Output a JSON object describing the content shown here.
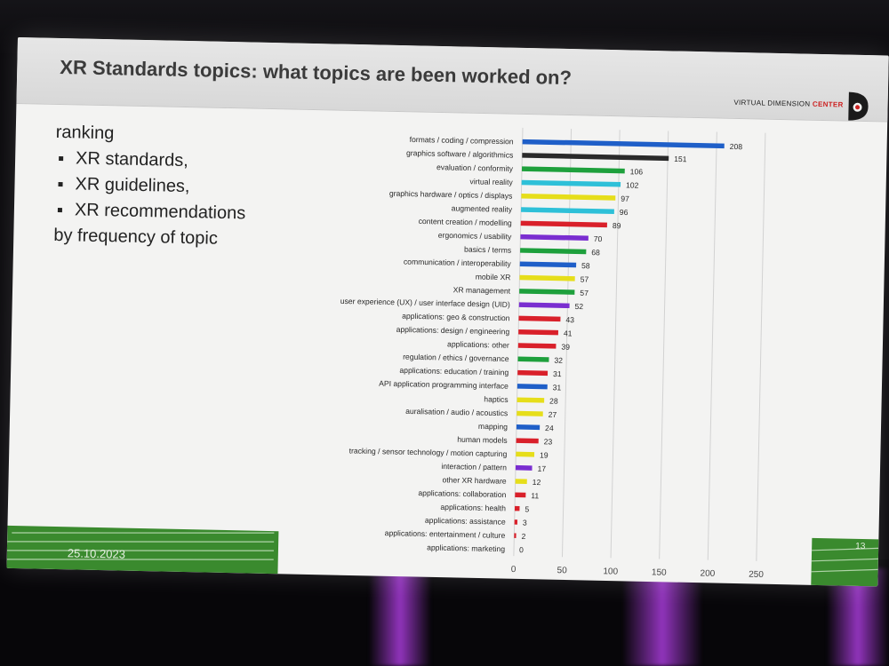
{
  "slide": {
    "title": "XR Standards topics: what topics are been worked on?",
    "brand_prefix": "VIRTUAL DIMENSION ",
    "brand_suffix": "CENTER",
    "left_heading": "ranking",
    "bullets": [
      "XR standards,",
      "XR guidelines,",
      "XR recommendations"
    ],
    "left_footer": "by frequency of topic",
    "date": "25.10.2023",
    "page_number": "13"
  },
  "colors": {
    "blue": "#1f5fc8",
    "black": "#2a2a2a",
    "green": "#1ea03c",
    "cyan": "#2ec0d8",
    "yellow": "#e6de1a",
    "red": "#d9202a",
    "purple": "#7a2ed0"
  },
  "chart_data": {
    "type": "bar",
    "orientation": "horizontal",
    "xlim": [
      0,
      250
    ],
    "xticks": [
      "0",
      "50",
      "100",
      "150",
      "200",
      "250"
    ],
    "grid": true,
    "categories": [
      "formats / coding / compression",
      "graphics software / algorithmics",
      "evaluation / conformity",
      "virtual reality",
      "graphics hardware / optics / displays",
      "augmented reality",
      "content creation / modelling",
      "ergonomics / usability",
      "basics / terms",
      "communication / interoperability",
      "mobile XR",
      "XR management",
      "user experience (UX) / user interface design (UID)",
      "applications: geo & construction",
      "applications: design / engineering",
      "applications: other",
      "regulation / ethics / governance",
      "applications: education / training",
      "API application programming interface",
      "haptics",
      "auralisation / audio / acoustics",
      "mapping",
      "human models",
      "tracking / sensor technology / motion capturing",
      "interaction / pattern",
      "other XR hardware",
      "applications: collaboration",
      "applications: health",
      "applications: assistance",
      "applications: entertainment / culture",
      "applications: marketing"
    ],
    "values": [
      208,
      151,
      106,
      102,
      97,
      96,
      89,
      70,
      68,
      58,
      57,
      57,
      52,
      43,
      41,
      39,
      32,
      31,
      31,
      28,
      27,
      24,
      23,
      19,
      17,
      12,
      11,
      5,
      3,
      2,
      0
    ],
    "bar_colors": [
      "blue",
      "black",
      "green",
      "cyan",
      "yellow",
      "cyan",
      "red",
      "purple",
      "green",
      "blue",
      "yellow",
      "green",
      "purple",
      "red",
      "red",
      "red",
      "green",
      "red",
      "blue",
      "yellow",
      "yellow",
      "blue",
      "red",
      "yellow",
      "purple",
      "yellow",
      "red",
      "red",
      "red",
      "red",
      "red"
    ]
  }
}
